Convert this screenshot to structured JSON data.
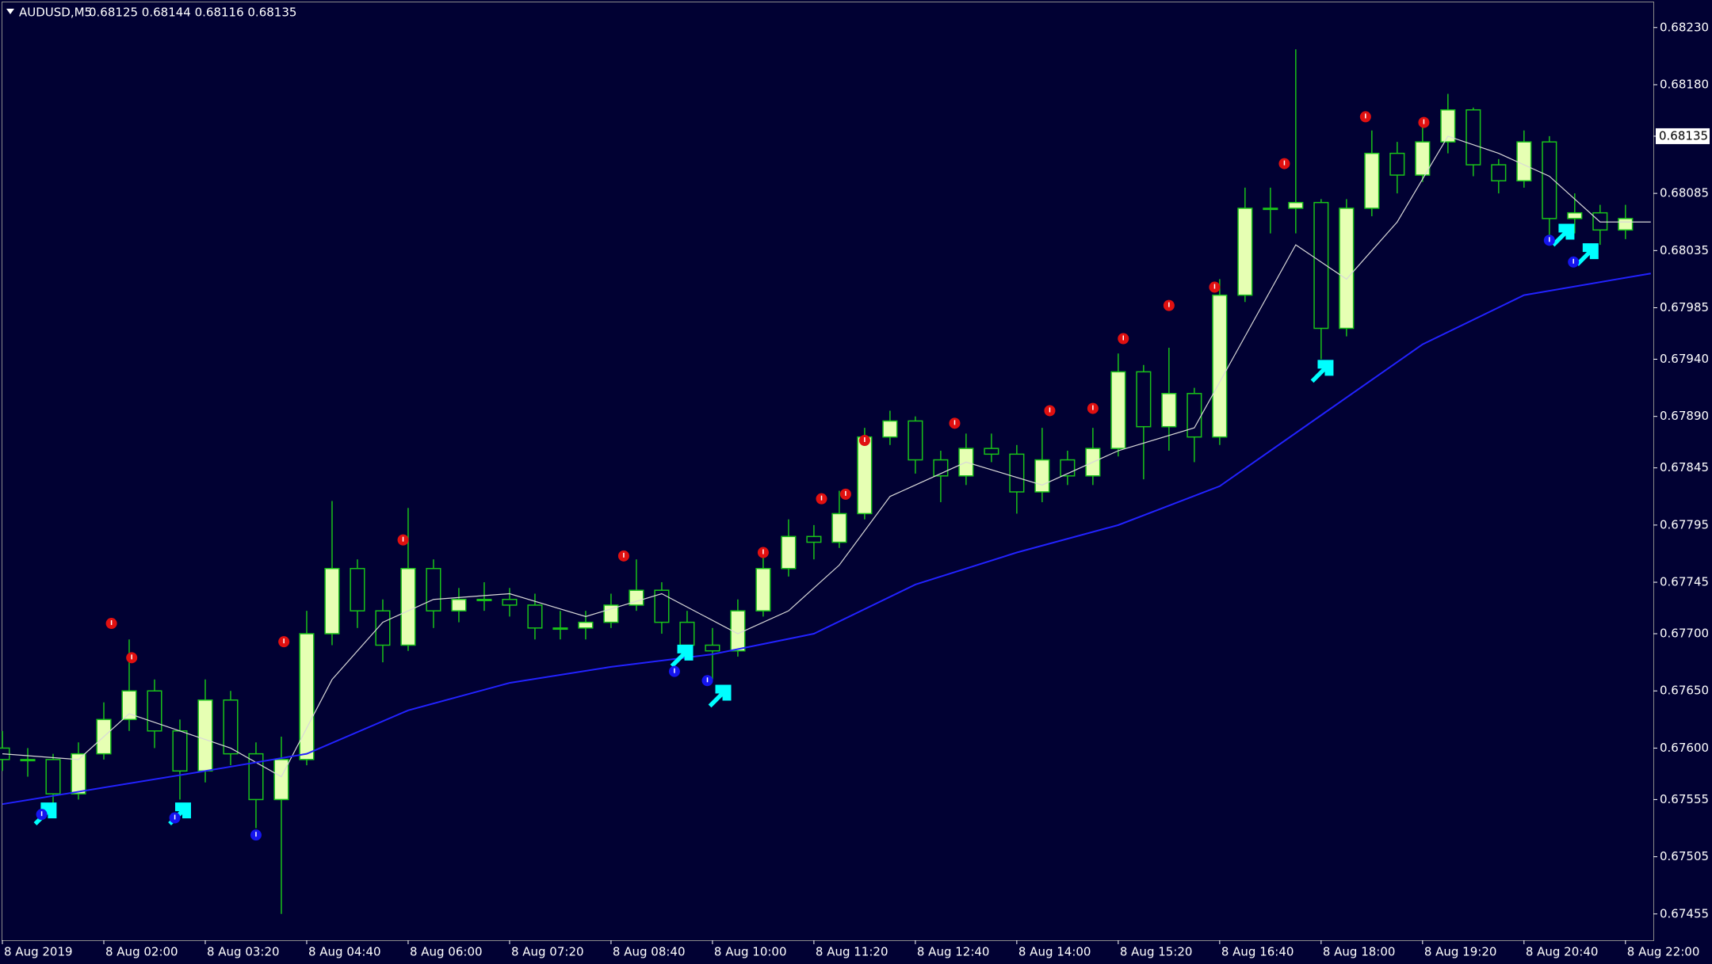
{
  "chart_data": {
    "type": "candlestick",
    "title": "AUDUSD,M5",
    "subtitle": "0.68125 0.68144 0.68116 0.68135",
    "background": "#010133",
    "bull_color": "#e6ffb3",
    "bear_color": "#010133",
    "wick_color": "#19c219",
    "grid": false,
    "xlim": [
      40,
      1342
    ],
    "xticks": [
      {
        "value": 40,
        "label": "8 Aug 2019"
      },
      {
        "value": 120,
        "label": "8 Aug 02:00"
      },
      {
        "value": 200,
        "label": "8 Aug 03:20"
      },
      {
        "value": 280,
        "label": "8 Aug 04:40"
      },
      {
        "value": 360,
        "label": "8 Aug 06:00"
      },
      {
        "value": 440,
        "label": "8 Aug 07:20"
      },
      {
        "value": 520,
        "label": "8 Aug 08:40"
      },
      {
        "value": 600,
        "label": "8 Aug 10:00"
      },
      {
        "value": 680,
        "label": "8 Aug 11:20"
      },
      {
        "value": 760,
        "label": "8 Aug 12:40"
      },
      {
        "value": 840,
        "label": "8 Aug 14:00"
      },
      {
        "value": 920,
        "label": "8 Aug 15:20"
      },
      {
        "value": 1000,
        "label": "8 Aug 16:40"
      },
      {
        "value": 1080,
        "label": "8 Aug 18:00"
      },
      {
        "value": 1160,
        "label": "8 Aug 19:20"
      },
      {
        "value": 1240,
        "label": "8 Aug 20:40"
      },
      {
        "value": 1320,
        "label": "8 Aug 22:00"
      }
    ],
    "ylim": [
      0.67432,
      0.68252
    ],
    "yticks": [
      {
        "value": 0.6823,
        "label": "0.68230"
      },
      {
        "value": 0.6818,
        "label": "0.68180"
      },
      0.68085,
      0.68035,
      0.67985,
      {
        "value": 0.6794,
        "label": "0.67940"
      },
      {
        "value": 0.6789,
        "label": "0.67890"
      },
      0.67845,
      0.67795,
      0.67745,
      {
        "value": 0.677,
        "label": "0.67700"
      },
      {
        "value": 0.6765,
        "label": "0.67650"
      },
      {
        "value": 0.676,
        "label": "0.67600"
      },
      0.67555,
      0.67505,
      0.67455
    ],
    "current_price": 0.68135,
    "x": [
      40,
      60,
      80,
      100,
      120,
      140,
      160,
      180,
      200,
      220,
      240,
      260,
      280,
      300,
      320,
      340,
      360,
      380,
      400,
      420,
      440,
      460,
      480,
      500,
      520,
      540,
      560,
      580,
      600,
      620,
      640,
      660,
      680,
      700,
      720,
      740,
      760,
      780,
      800,
      820,
      840,
      860,
      880,
      900,
      920,
      940,
      960,
      980,
      1000,
      1020,
      1040,
      1060,
      1080,
      1100,
      1120,
      1140,
      1160,
      1180,
      1200,
      1220,
      1240,
      1260,
      1280,
      1300,
      1320
    ],
    "open": [
      0.676,
      0.6759,
      0.6759,
      0.6756,
      0.67595,
      0.67625,
      0.6765,
      0.67615,
      0.6758,
      0.67642,
      0.67595,
      0.67555,
      0.6759,
      0.677,
      0.67757,
      0.6772,
      0.6769,
      0.67757,
      0.6772,
      0.6773,
      0.6773,
      0.67725,
      0.67705,
      0.67705,
      0.6771,
      0.67725,
      0.67738,
      0.6771,
      0.6769,
      0.67685,
      0.6772,
      0.67757,
      0.67785,
      0.6778,
      0.67805,
      0.67872,
      0.67886,
      0.67852,
      0.67838,
      0.67862,
      0.67857,
      0.67824,
      0.67852,
      0.67838,
      0.67862,
      0.67929,
      0.67881,
      0.6791,
      0.67872,
      0.67996,
      0.68072,
      0.68072,
      0.68077,
      0.67967,
      0.68072,
      0.6812,
      0.68101,
      0.6813,
      0.68158,
      0.6811,
      0.68096,
      0.6813,
      0.68063,
      0.68068,
      0.68053
    ],
    "high": [
      0.67615,
      0.676,
      0.67595,
      0.67605,
      0.6764,
      0.67695,
      0.6766,
      0.67625,
      0.6766,
      0.6765,
      0.67605,
      0.6761,
      0.6772,
      0.67816,
      0.67765,
      0.6773,
      0.6781,
      0.67765,
      0.6774,
      0.67745,
      0.6774,
      0.67735,
      0.6772,
      0.6772,
      0.67735,
      0.67765,
      0.67745,
      0.6772,
      0.67705,
      0.6773,
      0.6777,
      0.678,
      0.67795,
      0.67825,
      0.6788,
      0.67895,
      0.6789,
      0.6786,
      0.67875,
      0.67875,
      0.67865,
      0.6788,
      0.6786,
      0.6788,
      0.67945,
      0.67935,
      0.6795,
      0.67915,
      0.6801,
      0.6809,
      0.6809,
      0.68211,
      0.6808,
      0.6808,
      0.6814,
      0.6813,
      0.68145,
      0.68172,
      0.6816,
      0.68115,
      0.6814,
      0.68135,
      0.68085,
      0.68075,
      0.68075
    ],
    "low": [
      0.6758,
      0.67575,
      0.67545,
      0.67555,
      0.6759,
      0.67615,
      0.676,
      0.67555,
      0.6757,
      0.67585,
      0.6753,
      0.67455,
      0.67585,
      0.6769,
      0.67705,
      0.67675,
      0.67685,
      0.67705,
      0.6771,
      0.6772,
      0.67715,
      0.67695,
      0.67695,
      0.67695,
      0.67705,
      0.6772,
      0.677,
      0.6768,
      0.6766,
      0.6768,
      0.67715,
      0.6775,
      0.67765,
      0.67775,
      0.678,
      0.67865,
      0.6784,
      0.67815,
      0.6783,
      0.6785,
      0.67805,
      0.67815,
      0.6783,
      0.6783,
      0.67855,
      0.67835,
      0.6786,
      0.6785,
      0.67865,
      0.6799,
      0.6805,
      0.6805,
      0.6794,
      0.6796,
      0.68065,
      0.68085,
      0.68095,
      0.6812,
      0.681,
      0.68085,
      0.6809,
      0.68045,
      0.6805,
      0.6804,
      0.68045
    ],
    "close": [
      0.6759,
      0.6759,
      0.6756,
      0.67595,
      0.67625,
      0.6765,
      0.67615,
      0.6758,
      0.67642,
      0.67595,
      0.67555,
      0.6759,
      0.677,
      0.67757,
      0.6772,
      0.6769,
      0.67757,
      0.6772,
      0.6773,
      0.6773,
      0.67725,
      0.67705,
      0.67705,
      0.6771,
      0.67725,
      0.67738,
      0.6771,
      0.6769,
      0.67685,
      0.6772,
      0.67757,
      0.67785,
      0.6778,
      0.67805,
      0.67872,
      0.67886,
      0.67852,
      0.67838,
      0.67862,
      0.67857,
      0.67824,
      0.67852,
      0.67838,
      0.67862,
      0.67929,
      0.67881,
      0.6791,
      0.67872,
      0.67996,
      0.68072,
      0.68072,
      0.68077,
      0.67967,
      0.68072,
      0.6812,
      0.68101,
      0.6813,
      0.68158,
      0.6811,
      0.68096,
      0.6813,
      0.68063,
      0.68068,
      0.68053,
      0.68063
    ],
    "series": [
      {
        "color": "#d8d8d8",
        "x": [
          40,
          100,
          140,
          180,
          220,
          260,
          300,
          340,
          380,
          440,
          500,
          560,
          620,
          660,
          700,
          740,
          800,
          860,
          920,
          980,
          1020,
          1060,
          1100,
          1140,
          1180,
          1220,
          1260,
          1300,
          1340
        ],
        "values": [
          0.67595,
          0.6759,
          0.6763,
          0.67615,
          0.676,
          0.67575,
          0.6766,
          0.6771,
          0.6773,
          0.67735,
          0.67715,
          0.67735,
          0.677,
          0.6772,
          0.6776,
          0.6782,
          0.6785,
          0.6783,
          0.6786,
          0.6788,
          0.6796,
          0.6804,
          0.6801,
          0.6806,
          0.68135,
          0.6812,
          0.681,
          0.6806,
          0.6806
        ]
      },
      {
        "color": "#2222ff",
        "x": [
          40,
          200,
          280,
          360,
          440,
          520,
          600,
          680,
          760,
          840,
          920,
          1000,
          1080,
          1160,
          1240,
          1340
        ],
        "values": [
          0.67551,
          0.6758,
          0.67595,
          0.67633,
          0.67657,
          0.67671,
          0.67682,
          0.677,
          0.67743,
          0.67771,
          0.67795,
          0.67829,
          0.67891,
          0.67953,
          0.67996,
          0.68015
        ]
      }
    ],
    "signals": [
      {
        "marker": "arrow",
        "color": "#00ffff",
        "x": [
          74,
          180,
          576,
          606,
          1081,
          1271,
          1290
        ],
        "values": [
          0.67542,
          0.67542,
          0.6768,
          0.67645,
          0.67929,
          0.68048,
          0.68031
        ]
      },
      {
        "marker": "dot",
        "color": "#e01010",
        "x": [
          126,
          142,
          262,
          356,
          530,
          640,
          686,
          705,
          720,
          791,
          866,
          900,
          924,
          960,
          996,
          1051,
          1115,
          1161
        ],
        "values": [
          0.67709,
          0.67679,
          0.67693,
          0.67782,
          0.67768,
          0.67771,
          0.67818,
          0.67822,
          0.67869,
          0.67884,
          0.67895,
          0.67897,
          0.67958,
          0.67987,
          0.68003,
          0.68111,
          0.68152,
          0.68147
        ]
      },
      {
        "marker": "dot",
        "color": "#1515ee",
        "x": [
          71,
          176,
          240,
          570,
          596,
          1260,
          1279
        ],
        "values": [
          0.67542,
          0.67539,
          0.67524,
          0.67667,
          0.67659,
          0.68044,
          0.68025
        ]
      }
    ]
  }
}
